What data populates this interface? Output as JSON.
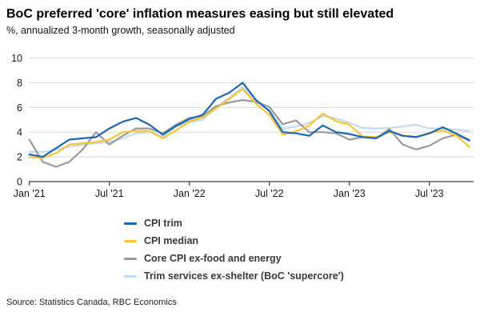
{
  "header": {
    "title": "BoC preferred 'core' inflation measures easing but still elevated",
    "subtitle": "%, annualized 3-month growth, seasonally adjusted"
  },
  "source": "Source: Statistics Canada, RBC Economics",
  "colors": {
    "grid": "#d9d9d9",
    "axis": "#404040",
    "tick_label": "#1a1a1a"
  },
  "chart_data": {
    "type": "line",
    "title": "BoC preferred 'core' inflation measures easing but still elevated",
    "ylabel": "%, annualized 3-month growth, seasonally adjusted",
    "x_start_month": "Jan 2021",
    "x_end_month": "Oct 2023",
    "x_tick_positions": [
      0,
      6,
      12,
      18,
      24,
      30
    ],
    "x_tick_labels": [
      "Jan '21",
      "Jul '21",
      "Jan '22",
      "Jul '22",
      "Jan '23",
      "Jul '23"
    ],
    "y_ticks": [
      0,
      2,
      4,
      6,
      8,
      10
    ],
    "ylim": [
      0,
      10
    ],
    "grid": true,
    "legend_position": "bottom",
    "series": [
      {
        "name": "CPI trim",
        "color": "#1a6ab3",
        "values": [
          2.2,
          2.0,
          2.7,
          3.4,
          3.5,
          3.6,
          4.3,
          4.85,
          5.15,
          4.6,
          3.8,
          4.5,
          5.05,
          5.4,
          6.7,
          7.2,
          8.0,
          6.6,
          5.7,
          4.0,
          3.9,
          3.7,
          4.55,
          4.0,
          3.85,
          3.6,
          3.5,
          4.1,
          3.7,
          3.6,
          3.9,
          4.4,
          3.9,
          3.35
        ]
      },
      {
        "name": "CPI median",
        "color": "#fcc332",
        "values": [
          2.0,
          1.9,
          2.3,
          3.0,
          3.1,
          3.2,
          3.4,
          4.0,
          4.1,
          4.1,
          3.5,
          4.15,
          4.85,
          5.2,
          5.9,
          6.7,
          7.5,
          6.3,
          5.4,
          3.8,
          4.05,
          4.55,
          5.5,
          4.9,
          4.6,
          3.65,
          3.6,
          4.0,
          3.75,
          3.6,
          3.95,
          4.15,
          3.75,
          2.8
        ]
      },
      {
        "name": "Core CPI ex-food and energy",
        "color": "#9b9b9b",
        "values": [
          3.4,
          1.6,
          1.2,
          1.6,
          2.6,
          4.0,
          3.0,
          3.7,
          4.3,
          4.3,
          3.9,
          4.6,
          5.15,
          5.3,
          6.1,
          6.4,
          6.6,
          6.45,
          6.05,
          4.65,
          4.95,
          4.0,
          4.0,
          3.9,
          3.4,
          3.6,
          3.5,
          4.25,
          3.0,
          2.6,
          2.9,
          3.5,
          3.8,
          3.3
        ]
      },
      {
        "name": "Trim services ex-shelter (BoC 'supercore')",
        "color": "#bedcf2",
        "values": [
          2.4,
          2.4,
          2.6,
          2.8,
          3.0,
          3.1,
          3.2,
          3.5,
          3.9,
          4.0,
          3.65,
          4.45,
          4.8,
          5.0,
          6.0,
          6.8,
          7.65,
          6.5,
          5.8,
          4.3,
          4.45,
          4.75,
          5.3,
          5.1,
          4.75,
          4.35,
          4.3,
          4.35,
          4.45,
          4.6,
          4.3,
          4.3,
          4.2,
          4.1
        ]
      }
    ]
  }
}
